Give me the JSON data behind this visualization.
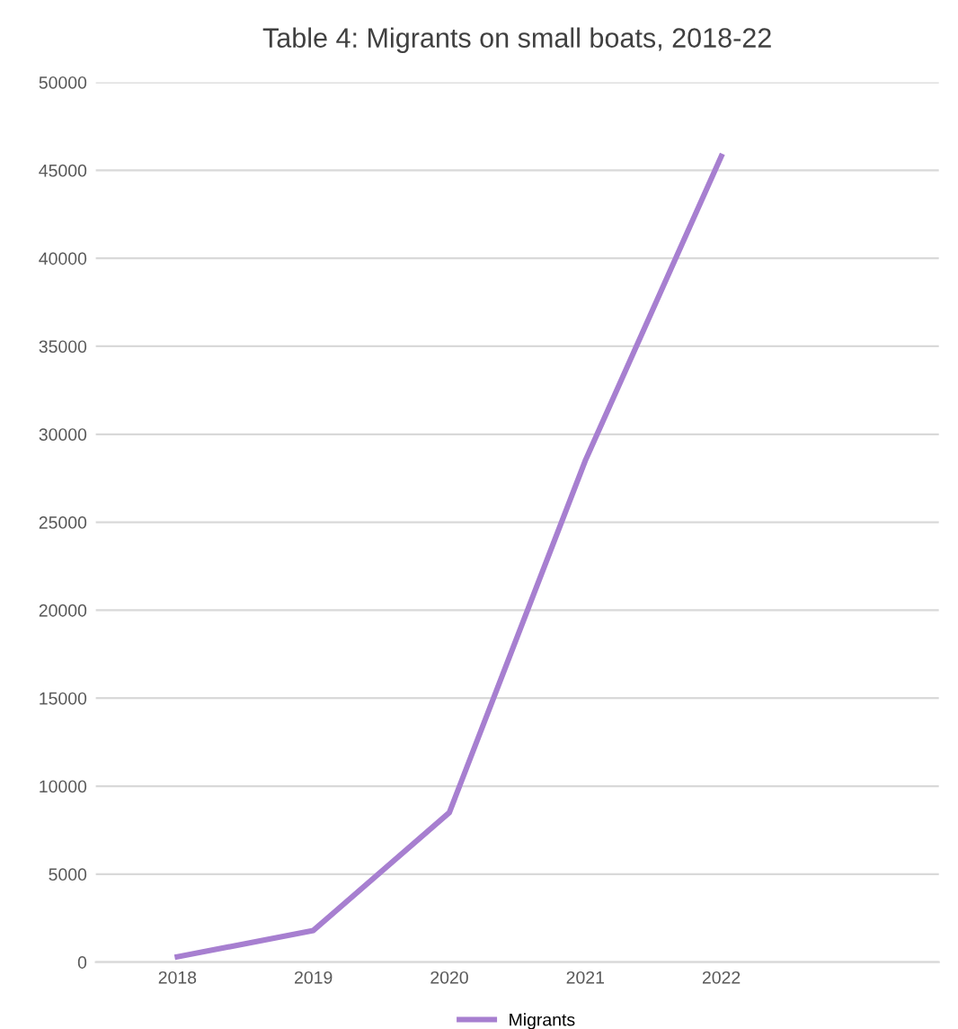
{
  "chart_data": {
    "type": "line",
    "title": "Table 4: Migrants on small boats, 2018-22",
    "categories": [
      "2018",
      "2019",
      "2020",
      "2021",
      "2022"
    ],
    "series": [
      {
        "name": "Migrants",
        "color": "#a77fd0",
        "values": [
          300,
          1800,
          8500,
          28500,
          45800
        ]
      }
    ],
    "ylim": [
      0,
      50000
    ],
    "yticks": [
      0,
      5000,
      10000,
      15000,
      20000,
      25000,
      30000,
      35000,
      40000,
      45000,
      50000
    ],
    "grid": "y",
    "legend": "bottom",
    "marker": "none",
    "line_style": "solid"
  }
}
